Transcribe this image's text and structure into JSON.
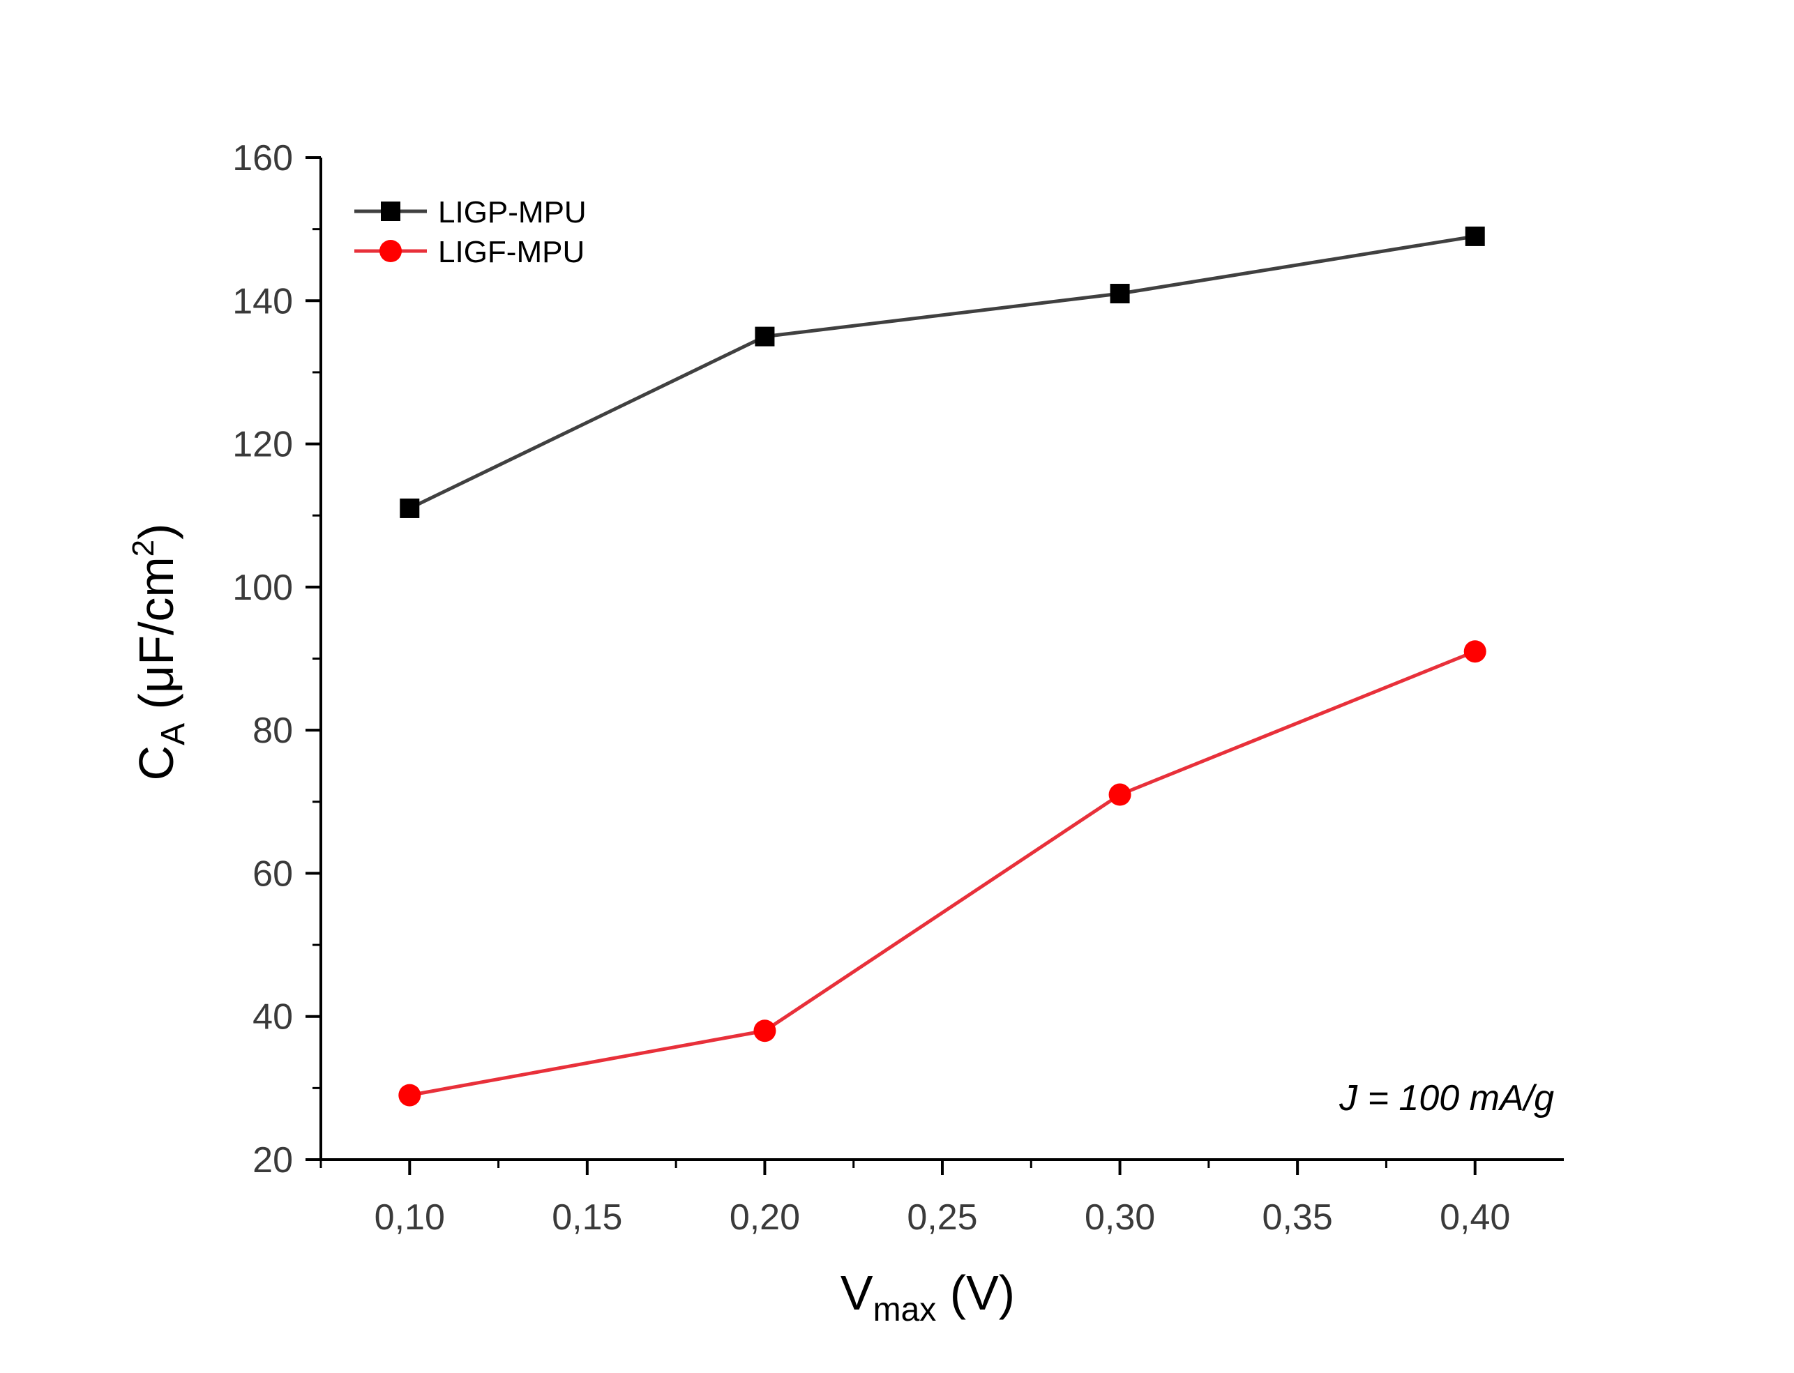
{
  "chart_data": {
    "type": "line",
    "xlabel_main": "V",
    "xlabel_sub": "max",
    "xlabel_tail": " (V)",
    "ylabel_main": "C",
    "ylabel_sub": "A",
    "ylabel_mid": " (μF/cm",
    "ylabel_sup": "2",
    "ylabel_tail": ")",
    "xlim": [
      0.075,
      0.425
    ],
    "ylim": [
      20,
      160
    ],
    "x_ticks": [
      0.1,
      0.15,
      0.2,
      0.25,
      0.3,
      0.35,
      0.4
    ],
    "x_tick_labels": [
      "0,10",
      "0,15",
      "0,20",
      "0,25",
      "0,30",
      "0,35",
      "0,40"
    ],
    "y_ticks": [
      20,
      40,
      60,
      80,
      100,
      120,
      140,
      160
    ],
    "y_tick_labels": [
      "20",
      "40",
      "60",
      "80",
      "100",
      "120",
      "140",
      "160"
    ],
    "x": [
      0.1,
      0.2,
      0.3,
      0.4
    ],
    "series": [
      {
        "name": "LIGP-MPU",
        "values": [
          111,
          135,
          141,
          149
        ],
        "color": "#404040",
        "marker": "square",
        "marker_color": "#000000"
      },
      {
        "name": "LIGF-MPU",
        "values": [
          29,
          38,
          71,
          91
        ],
        "color": "#e8303a",
        "marker": "circle",
        "marker_color": "#ff0000"
      }
    ],
    "annotation": "J = 100 mA/g",
    "legend_position": "top-left",
    "grid": false
  }
}
